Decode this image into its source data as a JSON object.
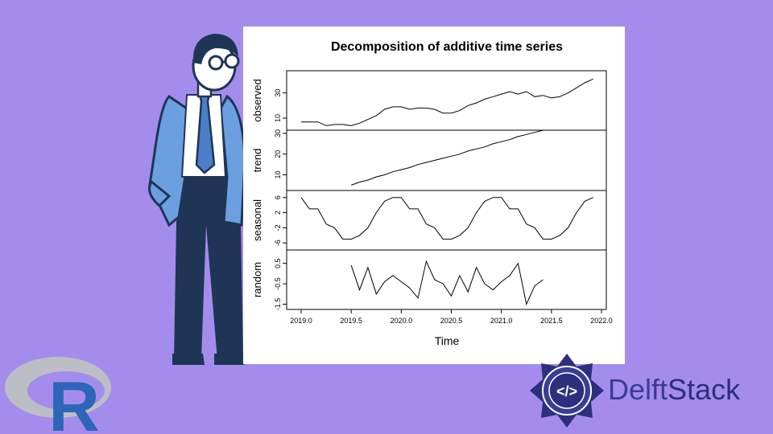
{
  "brand": {
    "r_logo_letter": "R",
    "delft_part1": "Delft",
    "delft_part2": "Stack",
    "delft_icon_text": "</>"
  },
  "colors": {
    "background": "#a48cec",
    "card": "#ffffff",
    "man_blue": "#6b9fe0",
    "man_navy": "#1f3556",
    "delft_navy": "#2d2f7e"
  },
  "chart_data": {
    "type": "line",
    "title": "Decomposition of additive time series",
    "xlabel": "Time",
    "xlim": [
      2019.0,
      2022.0
    ],
    "x_ticks": [
      "2019.0",
      "2019.5",
      "2020.0",
      "2020.5",
      "2021.0",
      "2021.5",
      "2022.0"
    ],
    "panels": [
      {
        "name": "observed",
        "ylim": [
          3,
          45
        ],
        "y_ticks": [
          "10",
          "30"
        ],
        "x": [
          2019.0,
          2019.083,
          2019.167,
          2019.25,
          2019.333,
          2019.417,
          2019.5,
          2019.583,
          2019.667,
          2019.75,
          2019.833,
          2019.917,
          2020.0,
          2020.083,
          2020.167,
          2020.25,
          2020.333,
          2020.417,
          2020.5,
          2020.583,
          2020.667,
          2020.75,
          2020.833,
          2020.917,
          2021.0,
          2021.083,
          2021.167,
          2021.25,
          2021.333,
          2021.417,
          2021.5,
          2021.583,
          2021.667,
          2021.75,
          2021.833,
          2021.917
        ],
        "values": [
          7,
          7,
          7,
          4,
          5,
          5,
          4,
          6,
          9,
          12,
          17,
          19,
          19,
          17,
          18,
          18,
          17,
          14,
          14,
          16,
          20,
          22,
          25,
          27,
          29,
          31,
          29,
          31,
          27,
          28,
          26,
          27,
          30,
          34,
          38,
          41
        ]
      },
      {
        "name": "trend",
        "ylim": [
          4,
          30
        ],
        "y_ticks": [
          "10",
          "20",
          "30"
        ],
        "x": [
          2019.5,
          2019.583,
          2019.667,
          2019.75,
          2019.833,
          2019.917,
          2020.0,
          2020.083,
          2020.167,
          2020.25,
          2020.333,
          2020.417,
          2020.5,
          2020.583,
          2020.667,
          2020.75,
          2020.833,
          2020.917,
          2021.0,
          2021.083,
          2021.167,
          2021.25,
          2021.333,
          2021.417
        ],
        "values": [
          5,
          6.5,
          7.5,
          9,
          10,
          11.5,
          12.5,
          13.5,
          15,
          16,
          17,
          18,
          19,
          20,
          21.5,
          22.5,
          23.5,
          25,
          26,
          27,
          28.5,
          29.5,
          30.5,
          31.5
        ]
      },
      {
        "name": "seasonal",
        "ylim": [
          -7,
          7
        ],
        "y_ticks": [
          "-6",
          "-2",
          "2",
          "6"
        ],
        "x": [
          2019.0,
          2019.083,
          2019.167,
          2019.25,
          2019.333,
          2019.417,
          2019.5,
          2019.583,
          2019.667,
          2019.75,
          2019.833,
          2019.917,
          2020.0,
          2020.083,
          2020.167,
          2020.25,
          2020.333,
          2020.417,
          2020.5,
          2020.583,
          2020.667,
          2020.75,
          2020.833,
          2020.917,
          2021.0,
          2021.083,
          2021.167,
          2021.25,
          2021.333,
          2021.417,
          2021.5,
          2021.583,
          2021.667,
          2021.75,
          2021.833,
          2021.917
        ],
        "values": [
          6,
          3,
          3,
          -1,
          -2,
          -5,
          -5,
          -4,
          -2,
          2,
          5,
          6,
          6,
          3,
          3,
          -1,
          -2,
          -5,
          -5,
          -4,
          -2,
          2,
          5,
          6,
          6,
          3,
          3,
          -1,
          -2,
          -5,
          -5,
          -4,
          -2,
          2,
          5,
          6
        ]
      },
      {
        "name": "random",
        "ylim": [
          -1.6,
          1.0
        ],
        "y_ticks": [
          "-1.5",
          "-0.5",
          "0.5"
        ],
        "x": [
          2019.5,
          2019.583,
          2019.667,
          2019.75,
          2019.833,
          2019.917,
          2020.0,
          2020.083,
          2020.167,
          2020.25,
          2020.333,
          2020.417,
          2020.5,
          2020.583,
          2020.667,
          2020.75,
          2020.833,
          2020.917,
          2021.0,
          2021.083,
          2021.167,
          2021.25,
          2021.333,
          2021.417
        ],
        "values": [
          0.4,
          -0.8,
          0.3,
          -1.0,
          -0.4,
          -0.1,
          -0.4,
          -0.7,
          -1.2,
          0.6,
          -0.3,
          -0.5,
          -1.1,
          -0.1,
          -0.9,
          0.3,
          -0.5,
          -0.8,
          -0.4,
          -0.1,
          0.5,
          -1.5,
          -0.6,
          -0.3
        ]
      }
    ]
  }
}
